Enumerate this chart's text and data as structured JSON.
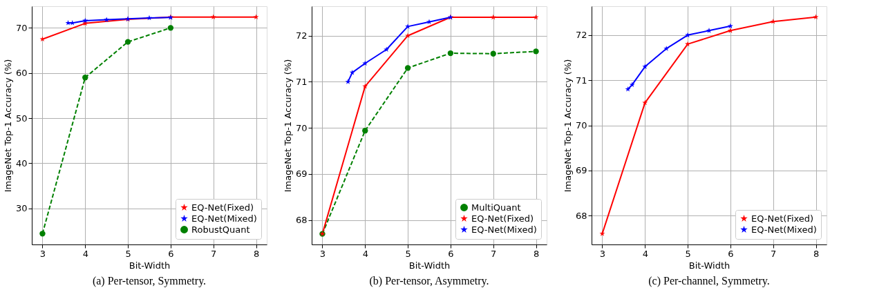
{
  "chart_data": [
    {
      "type": "line",
      "title": "(a) Per-tensor, Symmetry.",
      "xlabel": "Bit-Width",
      "ylabel": "ImageNet Top-1 Accuracy (%)",
      "xlim": [
        2.75,
        8.25
      ],
      "ylim": [
        22.0,
        74.8
      ],
      "xticks": [
        3,
        4,
        5,
        6,
        7,
        8
      ],
      "yticks": [
        30,
        40,
        50,
        60,
        70
      ],
      "grid": true,
      "legend": "bottom right",
      "series": [
        {
          "name": "EQ-Net(Fixed)",
          "color": "#ff0000",
          "marker": "star",
          "line_style": "solid",
          "x": [
            3,
            4,
            5,
            6,
            7,
            8
          ],
          "values": [
            67.5,
            71.0,
            71.9,
            72.4,
            72.4,
            72.4
          ]
        },
        {
          "name": "EQ-Net(Mixed)",
          "color": "#0000ff",
          "marker": "star",
          "line_style": "solid",
          "x": [
            3.6,
            3.7,
            4,
            4.5,
            5,
            5.5,
            6
          ],
          "values": [
            71.1,
            71.1,
            71.6,
            71.8,
            72.0,
            72.2,
            72.3
          ]
        },
        {
          "name": "RobustQuant",
          "color": "#008000",
          "marker": "circle",
          "line_style": "dashed",
          "x": [
            3,
            4,
            5,
            6
          ],
          "values": [
            24.4,
            59.0,
            66.9,
            70.0
          ]
        }
      ]
    },
    {
      "type": "line",
      "title": "(b) Per-tensor, Asymmetry.",
      "xlabel": "Bit-Width",
      "ylabel": "ImageNet Top-1 Accuracy (%)",
      "xlim": [
        2.75,
        8.25
      ],
      "ylim": [
        67.47,
        72.64
      ],
      "xticks": [
        3,
        4,
        5,
        6,
        7,
        8
      ],
      "yticks": [
        68,
        69,
        70,
        71,
        72
      ],
      "grid": true,
      "legend": "bottom right",
      "series": [
        {
          "name": "MultiQuant",
          "color": "#008000",
          "marker": "circle",
          "line_style": "dashed",
          "x": [
            3,
            4,
            5,
            6,
            7,
            8
          ],
          "values": [
            67.7,
            69.94,
            71.3,
            71.62,
            71.61,
            71.66
          ]
        },
        {
          "name": "EQ-Net(Fixed)",
          "color": "#ff0000",
          "marker": "star",
          "line_style": "solid",
          "x": [
            3,
            4,
            5,
            6,
            7,
            8
          ],
          "values": [
            67.7,
            70.9,
            72.0,
            72.4,
            72.4,
            72.4
          ]
        },
        {
          "name": "EQ-Net(Mixed)",
          "color": "#0000ff",
          "marker": "star",
          "line_style": "solid",
          "x": [
            3.6,
            3.7,
            4,
            4.5,
            5,
            5.5,
            6
          ],
          "values": [
            71.0,
            71.2,
            71.4,
            71.7,
            72.2,
            72.3,
            72.4
          ]
        }
      ]
    },
    {
      "type": "line",
      "title": "(c) Per-channel, Symmetry.",
      "xlabel": "Bit-Width",
      "ylabel": "ImageNet Top-1 Accuracy (%)",
      "xlim": [
        2.75,
        8.25
      ],
      "ylim": [
        67.36,
        72.64
      ],
      "xticks": [
        3,
        4,
        5,
        6,
        7,
        8
      ],
      "yticks": [
        68,
        69,
        70,
        71,
        72
      ],
      "grid": true,
      "legend": "bottom right",
      "series": [
        {
          "name": "EQ-Net(Fixed)",
          "color": "#ff0000",
          "marker": "star",
          "line_style": "solid",
          "x": [
            3,
            4,
            5,
            6,
            7,
            8
          ],
          "values": [
            67.6,
            70.5,
            71.8,
            72.1,
            72.3,
            72.4
          ]
        },
        {
          "name": "EQ-Net(Mixed)",
          "color": "#0000ff",
          "marker": "star",
          "line_style": "solid",
          "x": [
            3.6,
            3.7,
            4,
            4.5,
            5,
            5.5,
            6
          ],
          "values": [
            70.8,
            70.9,
            71.3,
            71.7,
            72.0,
            72.1,
            72.2
          ]
        }
      ]
    }
  ]
}
